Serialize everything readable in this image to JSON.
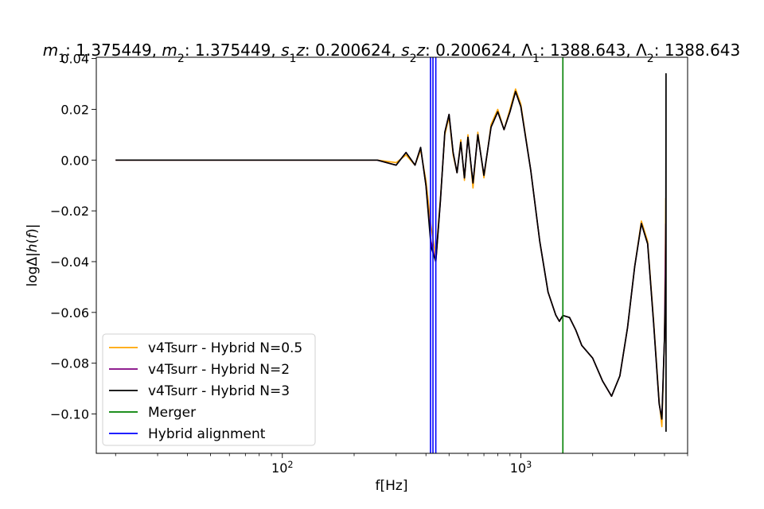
{
  "chart_data": {
    "type": "line",
    "title": "m1: 1.375449, m2: 1.375449, s1z: 0.200624, s2z: 0.200624, Λ1: 1388.643, Λ2: 1388.643",
    "title_parts": [
      {
        "t": "m",
        "style": "italic"
      },
      {
        "t": "1",
        "style": "sub"
      },
      {
        "t": ": 1.375449, "
      },
      {
        "t": "m",
        "style": "italic"
      },
      {
        "t": "2",
        "style": "sub"
      },
      {
        "t": ": 1.375449, "
      },
      {
        "t": "s",
        "style": "italic"
      },
      {
        "t": "1",
        "style": "sub"
      },
      {
        "t": "z",
        "style": "italic"
      },
      {
        "t": ": 0.200624, "
      },
      {
        "t": "s",
        "style": "italic"
      },
      {
        "t": "2",
        "style": "sub"
      },
      {
        "t": "z",
        "style": "italic"
      },
      {
        "t": ": 0.200624, "
      },
      {
        "t": "Λ"
      },
      {
        "t": "1",
        "style": "sub"
      },
      {
        "t": ": 1388.643, "
      },
      {
        "t": "Λ"
      },
      {
        "t": "2",
        "style": "sub"
      },
      {
        "t": ": 1388.643"
      }
    ],
    "xlabel": "f[Hz]",
    "ylabel_parts": [
      {
        "t": "log"
      },
      {
        "t": "Δ"
      },
      {
        "t": "|"
      },
      {
        "t": "h",
        "style": "italic"
      },
      {
        "t": "("
      },
      {
        "t": "f",
        "style": "italic"
      },
      {
        "t": ")|"
      }
    ],
    "xscale": "log",
    "xlim": [
      16.6,
      5000
    ],
    "ylim": [
      -0.1155,
      0.0405
    ],
    "x_ticks": [
      {
        "value": 100,
        "label": "10",
        "exp": "2"
      },
      {
        "value": 1000,
        "label": "10",
        "exp": "3"
      }
    ],
    "y_ticks": [
      {
        "value": 0.04,
        "label": "0.04"
      },
      {
        "value": 0.02,
        "label": "0.02"
      },
      {
        "value": 0.0,
        "label": "0.00"
      },
      {
        "value": -0.02,
        "label": "−0.02"
      },
      {
        "value": -0.04,
        "label": "−0.04"
      },
      {
        "value": -0.06,
        "label": "−0.06"
      },
      {
        "value": -0.08,
        "label": "−0.08"
      },
      {
        "value": -0.1,
        "label": "−0.10"
      }
    ],
    "grid": false,
    "legend_position": "lower-left",
    "series": [
      {
        "name": "v4Tsurr - Hybrid N=0.5",
        "color": "#ffa500",
        "width": 1.6,
        "x": [
          20,
          100,
          150,
          250,
          300,
          330,
          360,
          380,
          400,
          420,
          440,
          460,
          480,
          500,
          520,
          540,
          560,
          580,
          600,
          630,
          660,
          700,
          750,
          800,
          850,
          900,
          950,
          1000,
          1100,
          1200,
          1300,
          1400,
          1450,
          1500,
          1600,
          1700,
          1800,
          2000,
          2200,
          2400,
          2600,
          2800,
          3000,
          3200,
          3400,
          3600,
          3800,
          3900,
          4000,
          4050
        ],
        "y": [
          0,
          0,
          0,
          0,
          -0.001,
          0.002,
          -0.002,
          0.004,
          -0.008,
          -0.026,
          -0.038,
          -0.015,
          0.01,
          0.017,
          0.002,
          -0.005,
          0.008,
          -0.008,
          0.01,
          -0.011,
          0.011,
          -0.007,
          0.014,
          0.02,
          0.012,
          0.02,
          0.028,
          0.022,
          -0.004,
          -0.032,
          -0.052,
          -0.061,
          -0.0635,
          -0.0612,
          -0.062,
          -0.067,
          -0.073,
          -0.078,
          -0.087,
          -0.093,
          -0.085,
          -0.066,
          -0.042,
          -0.024,
          -0.032,
          -0.063,
          -0.095,
          -0.105,
          -0.07,
          -0.015
        ]
      },
      {
        "name": "v4Tsurr - Hybrid N=2",
        "color": "#800080",
        "width": 1.6,
        "x": [
          20,
          100,
          150,
          250,
          300,
          330,
          360,
          380,
          400,
          420,
          440,
          460,
          480,
          500,
          520,
          540,
          560,
          580,
          600,
          630,
          660,
          700,
          750,
          800,
          850,
          900,
          950,
          1000,
          1100,
          1200,
          1300,
          1400,
          1450,
          1500,
          1600,
          1700,
          1800,
          2000,
          2200,
          2400,
          2600,
          2800,
          3000,
          3200,
          3400,
          3600,
          3800,
          3900,
          4000,
          4050
        ],
        "y": [
          0,
          0,
          0,
          0,
          -0.002,
          0.003,
          -0.002,
          0.005,
          -0.01,
          -0.032,
          -0.04,
          -0.016,
          0.011,
          0.018,
          0.003,
          -0.005,
          0.007,
          -0.007,
          0.009,
          -0.009,
          0.01,
          -0.006,
          0.013,
          0.019,
          0.012,
          0.019,
          0.027,
          0.021,
          -0.004,
          -0.032,
          -0.052,
          -0.061,
          -0.0635,
          -0.0612,
          -0.062,
          -0.067,
          -0.073,
          -0.078,
          -0.087,
          -0.093,
          -0.085,
          -0.066,
          -0.042,
          -0.025,
          -0.033,
          -0.064,
          -0.096,
          -0.102,
          -0.07,
          -0.025
        ]
      },
      {
        "name": "v4Tsurr - Hybrid N=3",
        "color": "#000000",
        "width": 1.7,
        "x": [
          20,
          100,
          150,
          250,
          300,
          330,
          360,
          380,
          400,
          420,
          440,
          460,
          480,
          500,
          520,
          540,
          560,
          580,
          600,
          630,
          660,
          700,
          750,
          800,
          850,
          900,
          950,
          1000,
          1100,
          1200,
          1300,
          1400,
          1450,
          1500,
          1600,
          1700,
          1800,
          2000,
          2200,
          2400,
          2600,
          2800,
          3000,
          3200,
          3400,
          3600,
          3800,
          3900,
          4000,
          4050,
          4060,
          4060
        ],
        "y": [
          0,
          0,
          0,
          0,
          -0.002,
          0.003,
          -0.002,
          0.005,
          -0.01,
          -0.034,
          -0.04,
          -0.016,
          0.011,
          0.018,
          0.003,
          -0.005,
          0.007,
          -0.007,
          0.009,
          -0.009,
          0.01,
          -0.006,
          0.013,
          0.019,
          0.012,
          0.019,
          0.027,
          0.021,
          -0.004,
          -0.032,
          -0.052,
          -0.061,
          -0.0635,
          -0.0612,
          -0.062,
          -0.067,
          -0.073,
          -0.078,
          -0.087,
          -0.093,
          -0.085,
          -0.066,
          -0.042,
          -0.025,
          -0.033,
          -0.064,
          -0.096,
          -0.102,
          -0.07,
          -0.045,
          0.034,
          -0.107
        ]
      }
    ],
    "vlines": [
      {
        "name": "Merger",
        "color": "#008000",
        "x": [
          1500
        ]
      },
      {
        "name": "Hybrid alignment",
        "color": "#0000ff",
        "x": [
          418,
          428,
          440
        ]
      }
    ]
  }
}
